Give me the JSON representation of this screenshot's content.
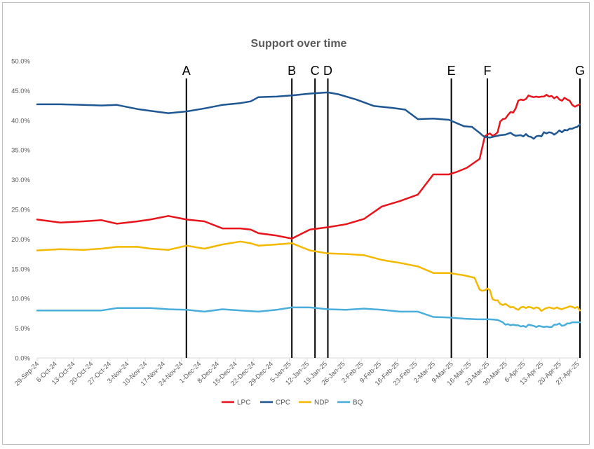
{
  "chart_data": {
    "type": "line",
    "title": "Support over time",
    "xlabel": "",
    "ylabel": "",
    "ylim": [
      0,
      50
    ],
    "y_tick_labels": [
      "0.0%",
      "5.0%",
      "10.0%",
      "15.0%",
      "20.0%",
      "25.0%",
      "30.0%",
      "35.0%",
      "40.0%",
      "45.0%",
      "50.0%"
    ],
    "x_range_dates": [
      "2024-09-29",
      "2025-04-28"
    ],
    "x_tick_labels": [
      "29-Sep-24",
      "6-Oct-24",
      "13-Oct-24",
      "20-Oct-24",
      "27-Oct-24",
      "3-Nov-24",
      "10-Nov-24",
      "17-Nov-24",
      "24-Nov-24",
      "1-Dec-24",
      "8-Dec-24",
      "15-Dec-24",
      "22-Dec-24",
      "29-Dec-24",
      "5-Jan-25",
      "12-Jan-25",
      "19-Jan-25",
      "26-Jan-25",
      "2-Feb-25",
      "9-Feb-25",
      "16-Feb-25",
      "23-Feb-25",
      "2-Mar-25",
      "9-Mar-25",
      "16-Mar-25",
      "23-Mar-25",
      "30-Mar-25",
      "6-Apr-25",
      "13-Apr-25",
      "20-Apr-25",
      "27-Apr-25"
    ],
    "grid": false,
    "legend_position": "bottom",
    "markers": [
      {
        "label": "A",
        "date": "2024-11-26"
      },
      {
        "label": "B",
        "date": "2025-01-06"
      },
      {
        "label": "C",
        "date": "2025-01-15"
      },
      {
        "label": "D",
        "date": "2025-01-20"
      },
      {
        "label": "E",
        "date": "2025-03-09"
      },
      {
        "label": "F",
        "date": "2025-03-23"
      },
      {
        "label": "G",
        "date": "2025-04-28"
      }
    ],
    "series": [
      {
        "name": "LPC",
        "color": "#e8141b",
        "points": [
          [
            "2024-09-29",
            23.3
          ],
          [
            "2024-10-08",
            22.8
          ],
          [
            "2024-10-17",
            23.0
          ],
          [
            "2024-10-24",
            23.2
          ],
          [
            "2024-10-30",
            22.6
          ],
          [
            "2024-11-07",
            23.0
          ],
          [
            "2024-11-12",
            23.3
          ],
          [
            "2024-11-19",
            23.9
          ],
          [
            "2024-11-26",
            23.3
          ],
          [
            "2024-12-03",
            23.0
          ],
          [
            "2024-12-10",
            21.8
          ],
          [
            "2024-12-17",
            21.8
          ],
          [
            "2024-12-21",
            21.6
          ],
          [
            "2024-12-24",
            21.0
          ],
          [
            "2024-12-31",
            20.6
          ],
          [
            "2025-01-06",
            20.1
          ],
          [
            "2025-01-13",
            21.6
          ],
          [
            "2025-01-20",
            22.0
          ],
          [
            "2025-01-27",
            22.5
          ],
          [
            "2025-02-03",
            23.4
          ],
          [
            "2025-02-10",
            25.5
          ],
          [
            "2025-02-17",
            26.4
          ],
          [
            "2025-02-24",
            27.5
          ],
          [
            "2025-03-02",
            30.9
          ],
          [
            "2025-03-08",
            30.9
          ],
          [
            "2025-03-11",
            31.3
          ],
          [
            "2025-03-15",
            32.0
          ],
          [
            "2025-03-20",
            33.5
          ],
          [
            "2025-03-22",
            37.3
          ],
          [
            "2025-03-23",
            37.6
          ],
          [
            "2025-03-24",
            37.8
          ],
          [
            "2025-03-25",
            37.4
          ],
          [
            "2025-03-26",
            37.6
          ],
          [
            "2025-03-27",
            38.0
          ],
          [
            "2025-03-28",
            39.8
          ],
          [
            "2025-03-29",
            40.2
          ],
          [
            "2025-03-30",
            40.3
          ],
          [
            "2025-03-31",
            40.9
          ],
          [
            "2025-04-01",
            41.4
          ],
          [
            "2025-04-02",
            41.3
          ],
          [
            "2025-04-03",
            42.0
          ],
          [
            "2025-04-04",
            43.3
          ],
          [
            "2025-04-05",
            43.5
          ],
          [
            "2025-04-06",
            43.4
          ],
          [
            "2025-04-07",
            43.6
          ],
          [
            "2025-04-08",
            44.2
          ],
          [
            "2025-04-09",
            44.0
          ],
          [
            "2025-04-10",
            43.9
          ],
          [
            "2025-04-11",
            44.0
          ],
          [
            "2025-04-12",
            43.9
          ],
          [
            "2025-04-13",
            44.0
          ],
          [
            "2025-04-14",
            44.0
          ],
          [
            "2025-04-15",
            44.3
          ],
          [
            "2025-04-16",
            44.0
          ],
          [
            "2025-04-17",
            44.1
          ],
          [
            "2025-04-18",
            43.7
          ],
          [
            "2025-04-19",
            44.0
          ],
          [
            "2025-04-20",
            43.5
          ],
          [
            "2025-04-21",
            43.3
          ],
          [
            "2025-04-22",
            43.8
          ],
          [
            "2025-04-23",
            43.5
          ],
          [
            "2025-04-24",
            43.3
          ],
          [
            "2025-04-25",
            42.6
          ],
          [
            "2025-04-26",
            42.3
          ],
          [
            "2025-04-28",
            42.7
          ]
        ]
      },
      {
        "name": "CPC",
        "color": "#1f5793",
        "points": [
          [
            "2024-09-29",
            42.7
          ],
          [
            "2024-10-08",
            42.7
          ],
          [
            "2024-10-17",
            42.6
          ],
          [
            "2024-10-24",
            42.5
          ],
          [
            "2024-10-30",
            42.6
          ],
          [
            "2024-11-07",
            41.9
          ],
          [
            "2024-11-12",
            41.6
          ],
          [
            "2024-11-19",
            41.2
          ],
          [
            "2024-11-26",
            41.5
          ],
          [
            "2024-12-03",
            42.0
          ],
          [
            "2024-12-10",
            42.6
          ],
          [
            "2024-12-17",
            42.9
          ],
          [
            "2024-12-21",
            43.2
          ],
          [
            "2024-12-24",
            43.9
          ],
          [
            "2024-12-31",
            44.0
          ],
          [
            "2025-01-06",
            44.2
          ],
          [
            "2025-01-13",
            44.5
          ],
          [
            "2025-01-20",
            44.7
          ],
          [
            "2025-01-24",
            44.4
          ],
          [
            "2025-01-31",
            43.5
          ],
          [
            "2025-02-07",
            42.4
          ],
          [
            "2025-02-14",
            42.1
          ],
          [
            "2025-02-19",
            41.8
          ],
          [
            "2025-02-24",
            40.2
          ],
          [
            "2025-03-02",
            40.3
          ],
          [
            "2025-03-08",
            40.1
          ],
          [
            "2025-03-14",
            39.0
          ],
          [
            "2025-03-17",
            38.9
          ],
          [
            "2025-03-20",
            37.9
          ],
          [
            "2025-03-21",
            37.5
          ],
          [
            "2025-03-22",
            37.2
          ],
          [
            "2025-03-24",
            37.1
          ],
          [
            "2025-03-26",
            37.3
          ],
          [
            "2025-03-28",
            37.5
          ],
          [
            "2025-03-30",
            37.6
          ],
          [
            "2025-04-01",
            37.9
          ],
          [
            "2025-04-02",
            37.6
          ],
          [
            "2025-04-03",
            37.4
          ],
          [
            "2025-04-05",
            37.5
          ],
          [
            "2025-04-06",
            37.3
          ],
          [
            "2025-04-07",
            37.7
          ],
          [
            "2025-04-08",
            37.3
          ],
          [
            "2025-04-09",
            37.2
          ],
          [
            "2025-04-10",
            36.9
          ],
          [
            "2025-04-11",
            37.3
          ],
          [
            "2025-04-12",
            37.4
          ],
          [
            "2025-04-13",
            37.3
          ],
          [
            "2025-04-14",
            38.0
          ],
          [
            "2025-04-15",
            37.8
          ],
          [
            "2025-04-16",
            38.0
          ],
          [
            "2025-04-17",
            37.9
          ],
          [
            "2025-04-18",
            37.6
          ],
          [
            "2025-04-19",
            37.9
          ],
          [
            "2025-04-20",
            38.3
          ],
          [
            "2025-04-21",
            38.0
          ],
          [
            "2025-04-22",
            38.4
          ],
          [
            "2025-04-23",
            38.3
          ],
          [
            "2025-04-24",
            38.6
          ],
          [
            "2025-04-25",
            38.6
          ],
          [
            "2025-04-26",
            38.8
          ],
          [
            "2025-04-27",
            38.9
          ],
          [
            "2025-04-28",
            39.3
          ]
        ]
      },
      {
        "name": "NDP",
        "color": "#f5b800",
        "points": [
          [
            "2024-09-29",
            18.1
          ],
          [
            "2024-10-08",
            18.3
          ],
          [
            "2024-10-17",
            18.2
          ],
          [
            "2024-10-24",
            18.4
          ],
          [
            "2024-10-30",
            18.7
          ],
          [
            "2024-11-07",
            18.7
          ],
          [
            "2024-11-12",
            18.4
          ],
          [
            "2024-11-19",
            18.2
          ],
          [
            "2024-11-26",
            18.9
          ],
          [
            "2024-12-03",
            18.4
          ],
          [
            "2024-12-10",
            19.1
          ],
          [
            "2024-12-17",
            19.6
          ],
          [
            "2024-12-21",
            19.3
          ],
          [
            "2024-12-24",
            18.9
          ],
          [
            "2024-12-31",
            19.1
          ],
          [
            "2025-01-06",
            19.3
          ],
          [
            "2025-01-13",
            18.1
          ],
          [
            "2025-01-20",
            17.6
          ],
          [
            "2025-01-27",
            17.5
          ],
          [
            "2025-02-03",
            17.3
          ],
          [
            "2025-02-10",
            16.5
          ],
          [
            "2025-02-17",
            16.0
          ],
          [
            "2025-02-24",
            15.4
          ],
          [
            "2025-03-02",
            14.3
          ],
          [
            "2025-03-08",
            14.3
          ],
          [
            "2025-03-14",
            13.9
          ],
          [
            "2025-03-18",
            13.5
          ],
          [
            "2025-03-20",
            11.5
          ],
          [
            "2025-03-21",
            11.3
          ],
          [
            "2025-03-22",
            11.4
          ],
          [
            "2025-03-23",
            11.7
          ],
          [
            "2025-03-24",
            11.4
          ],
          [
            "2025-03-25",
            9.9
          ],
          [
            "2025-03-26",
            9.7
          ],
          [
            "2025-03-27",
            9.7
          ],
          [
            "2025-03-28",
            9.1
          ],
          [
            "2025-03-29",
            8.9
          ],
          [
            "2025-03-30",
            9.1
          ],
          [
            "2025-04-01",
            8.5
          ],
          [
            "2025-04-02",
            8.6
          ],
          [
            "2025-04-03",
            8.3
          ],
          [
            "2025-04-04",
            8.1
          ],
          [
            "2025-04-05",
            8.5
          ],
          [
            "2025-04-06",
            8.6
          ],
          [
            "2025-04-07",
            8.4
          ],
          [
            "2025-04-08",
            8.6
          ],
          [
            "2025-04-09",
            8.5
          ],
          [
            "2025-04-10",
            8.3
          ],
          [
            "2025-04-11",
            8.5
          ],
          [
            "2025-04-12",
            8.4
          ],
          [
            "2025-04-13",
            7.9
          ],
          [
            "2025-04-14",
            8.2
          ],
          [
            "2025-04-15",
            8.4
          ],
          [
            "2025-04-16",
            8.5
          ],
          [
            "2025-04-17",
            8.4
          ],
          [
            "2025-04-18",
            8.3
          ],
          [
            "2025-04-19",
            8.5
          ],
          [
            "2025-04-20",
            8.3
          ],
          [
            "2025-04-21",
            8.2
          ],
          [
            "2025-04-22",
            8.4
          ],
          [
            "2025-04-23",
            8.5
          ],
          [
            "2025-04-24",
            8.7
          ],
          [
            "2025-04-25",
            8.6
          ],
          [
            "2025-04-26",
            8.4
          ],
          [
            "2025-04-27",
            8.6
          ],
          [
            "2025-04-28",
            8.0
          ]
        ]
      },
      {
        "name": "BQ",
        "color": "#4aaedc",
        "points": [
          [
            "2024-09-29",
            8.0
          ],
          [
            "2024-10-08",
            8.0
          ],
          [
            "2024-10-17",
            8.0
          ],
          [
            "2024-10-24",
            8.0
          ],
          [
            "2024-10-30",
            8.4
          ],
          [
            "2024-11-07",
            8.4
          ],
          [
            "2024-11-12",
            8.4
          ],
          [
            "2024-11-19",
            8.2
          ],
          [
            "2024-11-26",
            8.1
          ],
          [
            "2024-12-03",
            7.8
          ],
          [
            "2024-12-10",
            8.2
          ],
          [
            "2024-12-17",
            8.0
          ],
          [
            "2024-12-24",
            7.8
          ],
          [
            "2024-12-31",
            8.1
          ],
          [
            "2025-01-06",
            8.5
          ],
          [
            "2025-01-13",
            8.5
          ],
          [
            "2025-01-20",
            8.2
          ],
          [
            "2025-01-27",
            8.1
          ],
          [
            "2025-02-03",
            8.3
          ],
          [
            "2025-02-10",
            8.1
          ],
          [
            "2025-02-17",
            7.8
          ],
          [
            "2025-02-24",
            7.8
          ],
          [
            "2025-03-02",
            6.9
          ],
          [
            "2025-03-08",
            6.8
          ],
          [
            "2025-03-14",
            6.6
          ],
          [
            "2025-03-19",
            6.5
          ],
          [
            "2025-03-24",
            6.5
          ],
          [
            "2025-03-27",
            6.4
          ],
          [
            "2025-03-28",
            6.2
          ],
          [
            "2025-03-29",
            6.0
          ],
          [
            "2025-03-30",
            5.6
          ],
          [
            "2025-03-31",
            5.7
          ],
          [
            "2025-04-01",
            5.5
          ],
          [
            "2025-04-02",
            5.6
          ],
          [
            "2025-04-03",
            5.5
          ],
          [
            "2025-04-04",
            5.5
          ],
          [
            "2025-04-05",
            5.3
          ],
          [
            "2025-04-06",
            5.4
          ],
          [
            "2025-04-07",
            5.2
          ],
          [
            "2025-04-08",
            5.6
          ],
          [
            "2025-04-09",
            5.5
          ],
          [
            "2025-04-10",
            5.4
          ],
          [
            "2025-04-11",
            5.2
          ],
          [
            "2025-04-12",
            5.4
          ],
          [
            "2025-04-13",
            5.3
          ],
          [
            "2025-04-14",
            5.2
          ],
          [
            "2025-04-15",
            5.3
          ],
          [
            "2025-04-16",
            5.2
          ],
          [
            "2025-04-17",
            5.2
          ],
          [
            "2025-04-18",
            5.6
          ],
          [
            "2025-04-19",
            5.6
          ],
          [
            "2025-04-20",
            5.8
          ],
          [
            "2025-04-21",
            5.4
          ],
          [
            "2025-04-22",
            5.5
          ],
          [
            "2025-04-23",
            5.8
          ],
          [
            "2025-04-24",
            5.8
          ],
          [
            "2025-04-25",
            6.0
          ],
          [
            "2025-04-26",
            6.0
          ],
          [
            "2025-04-27",
            6.0
          ],
          [
            "2025-04-28",
            6.0
          ]
        ]
      }
    ]
  }
}
